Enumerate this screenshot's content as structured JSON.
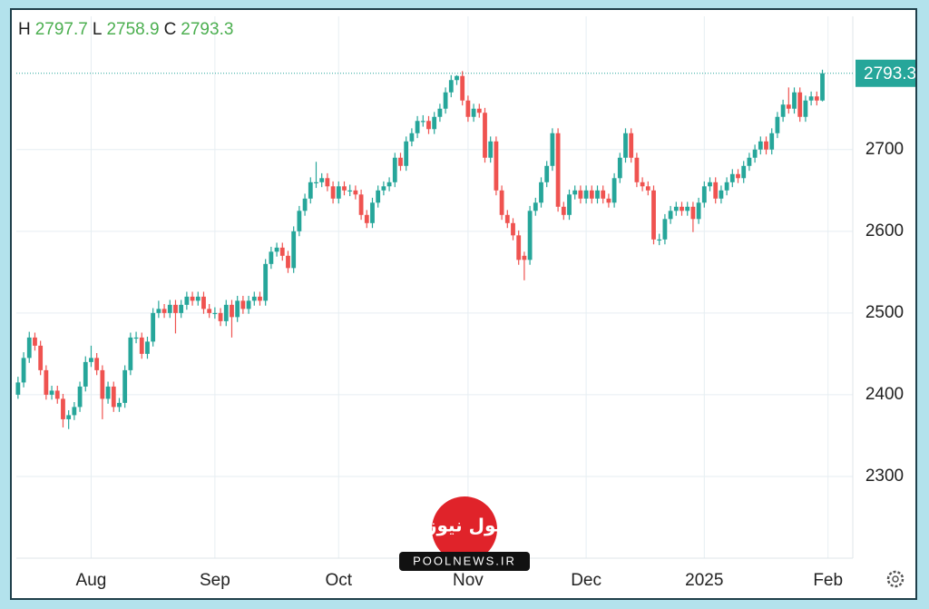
{
  "chart_data": {
    "type": "candlestick",
    "header": {
      "h_label": "H",
      "high": 2797.7,
      "l_label": "L",
      "low": 2758.9,
      "c_label": "C",
      "close": 2793.3
    },
    "last_price": 2793.3,
    "up_color": "#26a69a",
    "down_color": "#ef5350",
    "header_color": "#4caf50",
    "label_box_color": "#26a69a",
    "grid": true,
    "ylim": [
      2200,
      2863
    ],
    "yticks": [
      2300,
      2400,
      2500,
      2600,
      2700
    ],
    "xlim": [
      -0.3,
      148.4
    ],
    "xticks": [
      {
        "value": 13,
        "label": "Aug"
      },
      {
        "value": 35,
        "label": "Sep"
      },
      {
        "value": 57,
        "label": "Oct"
      },
      {
        "value": 80,
        "label": "Nov"
      },
      {
        "value": 101,
        "label": "Dec"
      },
      {
        "value": 122,
        "label": "2025"
      },
      {
        "value": 144,
        "label": "Feb"
      }
    ],
    "watermark": {
      "logo": "پول نیوز",
      "site": "POOLNEWS.IR"
    },
    "ohlc": [
      [
        2400,
        2422,
        2395,
        2415
      ],
      [
        2415,
        2452,
        2409,
        2445
      ],
      [
        2445,
        2477,
        2439,
        2470
      ],
      [
        2470,
        2476,
        2454,
        2460
      ],
      [
        2460,
        2466,
        2424,
        2430
      ],
      [
        2430,
        2436,
        2394,
        2400
      ],
      [
        2400,
        2411,
        2394,
        2405
      ],
      [
        2405,
        2411,
        2389,
        2395
      ],
      [
        2395,
        2401,
        2360,
        2370
      ],
      [
        2370,
        2381,
        2358,
        2375
      ],
      [
        2375,
        2391,
        2369,
        2385
      ],
      [
        2385,
        2416,
        2379,
        2410
      ],
      [
        2410,
        2447,
        2404,
        2440
      ],
      [
        2440,
        2460,
        2434,
        2445
      ],
      [
        2445,
        2451,
        2424,
        2430
      ],
      [
        2430,
        2436,
        2370,
        2395
      ],
      [
        2395,
        2416,
        2389,
        2410
      ],
      [
        2410,
        2416,
        2379,
        2385
      ],
      [
        2385,
        2396,
        2379,
        2390
      ],
      [
        2390,
        2436,
        2384,
        2430
      ],
      [
        2430,
        2476,
        2424,
        2470
      ],
      [
        2470,
        2477,
        2463,
        2470
      ],
      [
        2470,
        2476,
        2444,
        2450
      ],
      [
        2450,
        2471,
        2444,
        2465
      ],
      [
        2465,
        2506,
        2459,
        2500
      ],
      [
        2500,
        2515,
        2494,
        2505
      ],
      [
        2505,
        2511,
        2494,
        2500
      ],
      [
        2500,
        2516,
        2494,
        2510
      ],
      [
        2510,
        2516,
        2475,
        2500
      ],
      [
        2500,
        2516,
        2494,
        2510
      ],
      [
        2510,
        2526,
        2504,
        2520
      ],
      [
        2520,
        2526,
        2509,
        2515
      ],
      [
        2515,
        2526,
        2509,
        2520
      ],
      [
        2520,
        2526,
        2499,
        2505
      ],
      [
        2505,
        2511,
        2494,
        2500
      ],
      [
        2500,
        2507,
        2493,
        2500
      ],
      [
        2500,
        2506,
        2484,
        2490
      ],
      [
        2490,
        2516,
        2484,
        2510
      ],
      [
        2510,
        2516,
        2470,
        2495
      ],
      [
        2495,
        2521,
        2489,
        2515
      ],
      [
        2515,
        2521,
        2499,
        2505
      ],
      [
        2505,
        2521,
        2499,
        2515
      ],
      [
        2515,
        2526,
        2509,
        2520
      ],
      [
        2520,
        2526,
        2509,
        2515
      ],
      [
        2515,
        2566,
        2509,
        2560
      ],
      [
        2560,
        2581,
        2554,
        2575
      ],
      [
        2575,
        2586,
        2569,
        2580
      ],
      [
        2580,
        2586,
        2564,
        2570
      ],
      [
        2570,
        2576,
        2549,
        2555
      ],
      [
        2555,
        2606,
        2549,
        2600
      ],
      [
        2600,
        2631,
        2594,
        2625
      ],
      [
        2625,
        2646,
        2619,
        2640
      ],
      [
        2640,
        2666,
        2634,
        2660
      ],
      [
        2660,
        2685,
        2653,
        2660
      ],
      [
        2660,
        2671,
        2654,
        2665
      ],
      [
        2665,
        2671,
        2649,
        2655
      ],
      [
        2655,
        2661,
        2634,
        2640
      ],
      [
        2640,
        2661,
        2634,
        2655
      ],
      [
        2655,
        2661,
        2644,
        2650
      ],
      [
        2650,
        2657,
        2643,
        2650
      ],
      [
        2650,
        2656,
        2639,
        2645
      ],
      [
        2645,
        2651,
        2614,
        2620
      ],
      [
        2620,
        2626,
        2604,
        2610
      ],
      [
        2610,
        2641,
        2604,
        2635
      ],
      [
        2635,
        2656,
        2629,
        2650
      ],
      [
        2650,
        2661,
        2644,
        2655
      ],
      [
        2655,
        2666,
        2649,
        2660
      ],
      [
        2660,
        2696,
        2654,
        2690
      ],
      [
        2690,
        2696,
        2674,
        2680
      ],
      [
        2680,
        2716,
        2674,
        2710
      ],
      [
        2710,
        2726,
        2704,
        2720
      ],
      [
        2720,
        2741,
        2714,
        2735
      ],
      [
        2735,
        2742,
        2728,
        2735
      ],
      [
        2735,
        2741,
        2719,
        2725
      ],
      [
        2725,
        2746,
        2719,
        2740
      ],
      [
        2740,
        2756,
        2734,
        2750
      ],
      [
        2750,
        2776,
        2744,
        2770
      ],
      [
        2770,
        2791,
        2764,
        2785
      ],
      [
        2785,
        2791,
        2779,
        2790
      ],
      [
        2790,
        2796,
        2754,
        2760
      ],
      [
        2760,
        2766,
        2734,
        2740
      ],
      [
        2740,
        2756,
        2734,
        2750
      ],
      [
        2750,
        2756,
        2739,
        2745
      ],
      [
        2745,
        2751,
        2684,
        2690
      ],
      [
        2690,
        2716,
        2684,
        2710
      ],
      [
        2710,
        2716,
        2644,
        2650
      ],
      [
        2650,
        2656,
        2614,
        2620
      ],
      [
        2620,
        2626,
        2604,
        2610
      ],
      [
        2610,
        2616,
        2589,
        2595
      ],
      [
        2595,
        2601,
        2559,
        2565
      ],
      [
        2570,
        2575,
        2540,
        2565
      ],
      [
        2565,
        2631,
        2559,
        2625
      ],
      [
        2625,
        2641,
        2619,
        2635
      ],
      [
        2635,
        2666,
        2629,
        2660
      ],
      [
        2660,
        2686,
        2654,
        2680
      ],
      [
        2680,
        2726,
        2674,
        2720
      ],
      [
        2720,
        2726,
        2624,
        2630
      ],
      [
        2630,
        2636,
        2614,
        2620
      ],
      [
        2620,
        2651,
        2614,
        2645
      ],
      [
        2645,
        2656,
        2639,
        2650
      ],
      [
        2650,
        2656,
        2634,
        2640
      ],
      [
        2640,
        2656,
        2634,
        2650
      ],
      [
        2650,
        2656,
        2634,
        2640
      ],
      [
        2640,
        2656,
        2634,
        2650
      ],
      [
        2650,
        2656,
        2634,
        2640
      ],
      [
        2640,
        2646,
        2629,
        2635
      ],
      [
        2635,
        2671,
        2629,
        2665
      ],
      [
        2665,
        2696,
        2659,
        2690
      ],
      [
        2690,
        2726,
        2684,
        2720
      ],
      [
        2720,
        2726,
        2684,
        2690
      ],
      [
        2690,
        2696,
        2654,
        2660
      ],
      [
        2660,
        2666,
        2649,
        2655
      ],
      [
        2655,
        2661,
        2644,
        2650
      ],
      [
        2650,
        2656,
        2584,
        2590
      ],
      [
        2590,
        2597,
        2583,
        2590
      ],
      [
        2590,
        2621,
        2584,
        2615
      ],
      [
        2615,
        2631,
        2609,
        2625
      ],
      [
        2625,
        2636,
        2619,
        2630
      ],
      [
        2630,
        2636,
        2619,
        2625
      ],
      [
        2625,
        2636,
        2619,
        2630
      ],
      [
        2630,
        2636,
        2599,
        2615
      ],
      [
        2615,
        2641,
        2609,
        2635
      ],
      [
        2635,
        2661,
        2629,
        2655
      ],
      [
        2655,
        2666,
        2649,
        2660
      ],
      [
        2660,
        2666,
        2634,
        2640
      ],
      [
        2640,
        2656,
        2634,
        2650
      ],
      [
        2650,
        2666,
        2644,
        2660
      ],
      [
        2660,
        2676,
        2654,
        2670
      ],
      [
        2670,
        2676,
        2659,
        2665
      ],
      [
        2665,
        2686,
        2659,
        2680
      ],
      [
        2680,
        2696,
        2674,
        2690
      ],
      [
        2690,
        2706,
        2684,
        2700
      ],
      [
        2700,
        2716,
        2694,
        2710
      ],
      [
        2710,
        2716,
        2694,
        2700
      ],
      [
        2700,
        2726,
        2694,
        2720
      ],
      [
        2720,
        2746,
        2714,
        2740
      ],
      [
        2740,
        2761,
        2734,
        2755
      ],
      [
        2755,
        2776,
        2744,
        2750
      ],
      [
        2750,
        2776,
        2744,
        2770
      ],
      [
        2770,
        2776,
        2734,
        2740
      ],
      [
        2740,
        2766,
        2734,
        2760
      ],
      [
        2760,
        2771,
        2754,
        2765
      ],
      [
        2765,
        2771,
        2754,
        2760
      ],
      [
        2760,
        2797.7,
        2758.9,
        2793.3
      ]
    ]
  }
}
